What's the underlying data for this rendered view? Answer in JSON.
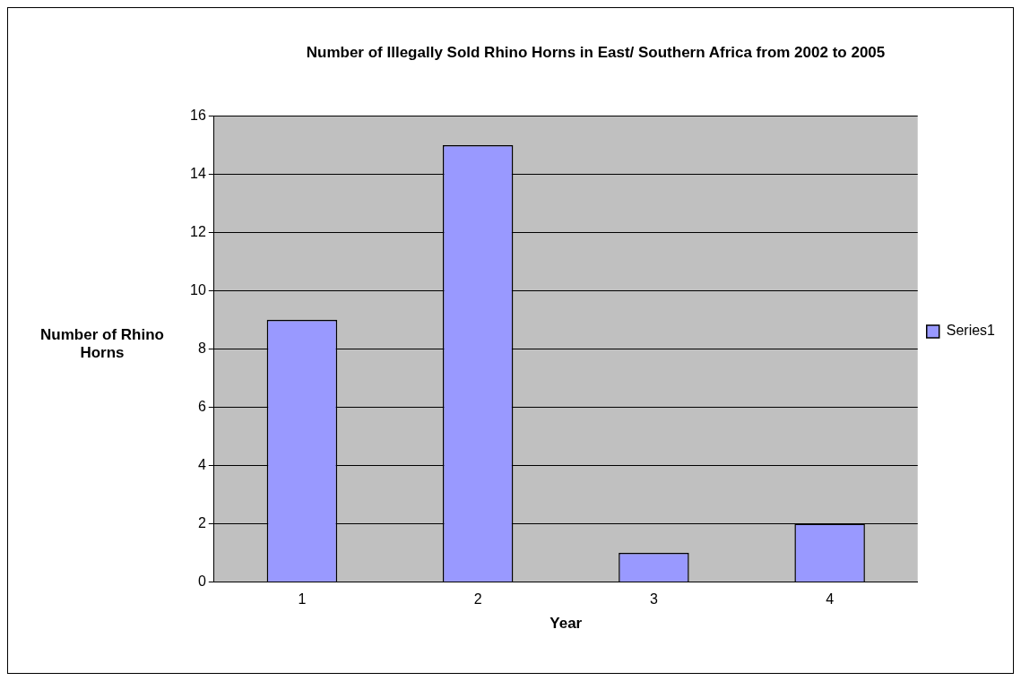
{
  "chart_data": {
    "type": "bar",
    "title": "Number of Illegally Sold Rhino Horns in East/ Southern Africa from 2002 to 2005",
    "xlabel": "Year",
    "ylabel": "Number of Rhino Horns",
    "categories": [
      "1",
      "2",
      "3",
      "4"
    ],
    "series": [
      {
        "name": "Series1",
        "color": "#9999ff",
        "values": [
          9,
          15,
          1,
          2
        ]
      }
    ],
    "ylim": [
      0,
      16
    ],
    "yticks": [
      0,
      2,
      4,
      6,
      8,
      10,
      12,
      14,
      16
    ],
    "grid": "y",
    "legend": "right"
  }
}
